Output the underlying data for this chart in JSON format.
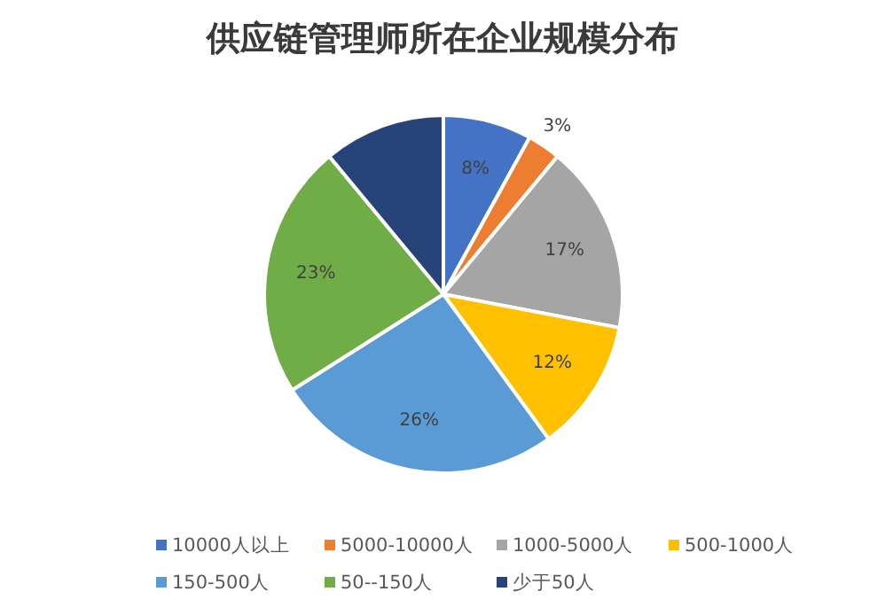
{
  "chart_data": {
    "type": "pie",
    "title": "供应链管理师所在企业规模分布",
    "categories": [
      "10000人以上",
      "5000-10000人",
      "1000-5000人",
      "500-1000人",
      "150-500人",
      "50--150人",
      "少于50人"
    ],
    "values": [
      8,
      3,
      17,
      12,
      26,
      23,
      11
    ],
    "value_labels": [
      "8%",
      "3%",
      "17%",
      "12%",
      "26%",
      "23%",
      null
    ],
    "colors": [
      "#4472c4",
      "#ed7d31",
      "#a5a5a5",
      "#ffc000",
      "#5b9bd5",
      "#70ad47",
      "#264478"
    ],
    "legend": "bottom"
  }
}
